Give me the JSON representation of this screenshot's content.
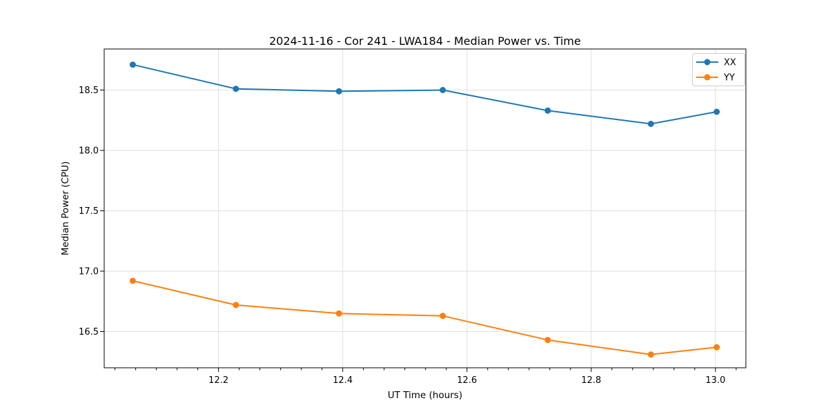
{
  "chart_data": {
    "type": "line",
    "title": "2024-11-16 - Cor 241 - LWA184 - Median Power vs. Time",
    "xlabel": "UT Time (hours)",
    "ylabel": "Median Power (CPU)",
    "x": [
      12.062,
      12.228,
      12.394,
      12.561,
      12.73,
      12.896,
      13.002
    ],
    "series": [
      {
        "name": "XX",
        "color": "#1f77b4",
        "values": [
          18.71,
          18.51,
          18.49,
          18.5,
          18.33,
          18.22,
          18.32
        ]
      },
      {
        "name": "YY",
        "color": "#ff7f0e",
        "values": [
          16.92,
          16.72,
          16.65,
          16.63,
          16.43,
          16.31,
          16.37
        ]
      }
    ],
    "xlim": [
      12.016,
      13.049
    ],
    "ylim": [
      16.2,
      18.84
    ],
    "xticks": [
      12.2,
      12.4,
      12.6,
      12.8,
      13.0
    ],
    "yticks": [
      16.5,
      17.0,
      17.5,
      18.0,
      18.5
    ],
    "x_minor_per_major": 6,
    "grid": true,
    "legend": {
      "position": "upper right",
      "entries": [
        "XX",
        "YY"
      ]
    },
    "colors": {
      "grid": "#e0e0e0",
      "spine": "#000000",
      "background": "#ffffff",
      "legend_border": "#cccccc"
    }
  }
}
